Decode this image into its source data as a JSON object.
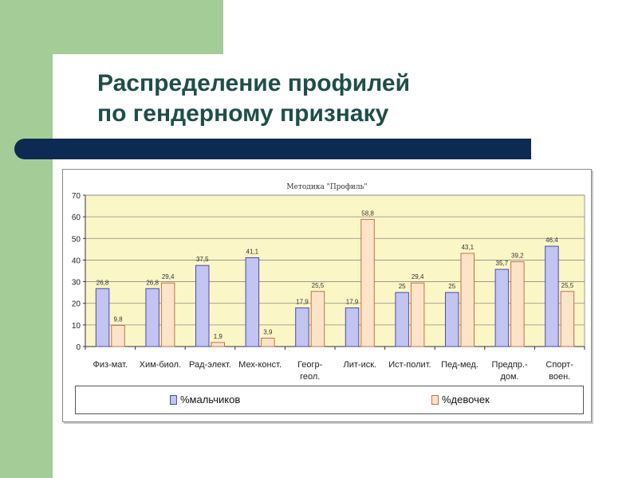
{
  "slide": {
    "title_line1": "Распределение профилей",
    "title_line2": "по гендерному признаку"
  },
  "colors": {
    "green_band": "#a4cc97",
    "title_text": "#1f4e4a",
    "rule": "#0c2a52",
    "plot_background": "#fbf6c6",
    "boys_fill": "#c2c4f1",
    "boys_stroke": "#4a4ca8",
    "girls_fill": "#fde4c8",
    "girls_stroke": "#c0704a"
  },
  "chart_data": {
    "type": "bar",
    "title": "Методика \"Профиль\"",
    "categories": [
      [
        "Физ-мат."
      ],
      [
        "Хим-биол."
      ],
      [
        "Рад-элект."
      ],
      [
        "Мех-конст."
      ],
      [
        "Геогр-",
        "геол."
      ],
      [
        "Лит-иск."
      ],
      [
        "Ист-полит."
      ],
      [
        "Пед-мед."
      ],
      [
        "Предпр.-",
        "дом."
      ],
      [
        "Спорт-",
        "воен."
      ]
    ],
    "series": [
      {
        "name": "%мальчиков",
        "values": [
          26.8,
          26.8,
          37.5,
          41.1,
          17.9,
          17.9,
          25,
          25,
          35.7,
          46.4
        ],
        "labels": [
          "26,8",
          "26,8",
          "37,5",
          "41,1",
          "17,9",
          "17,9",
          "25",
          "25",
          "35,7",
          "46,4"
        ]
      },
      {
        "name": "%девочек",
        "values": [
          9.8,
          29.4,
          1.9,
          3.9,
          25.5,
          58.8,
          29.4,
          43.1,
          39.2,
          25.5
        ],
        "labels": [
          "9,8",
          "29,4",
          "1,9",
          "3,9",
          "25,5",
          "58,8",
          "29,4",
          "43,1",
          "39,2",
          "25,5"
        ]
      }
    ],
    "xlabel": "",
    "ylabel": "",
    "ylim": [
      0,
      70
    ],
    "yticks": [
      0,
      10,
      20,
      30,
      40,
      50,
      60,
      70
    ],
    "grid": true,
    "legend_position": "bottom"
  }
}
